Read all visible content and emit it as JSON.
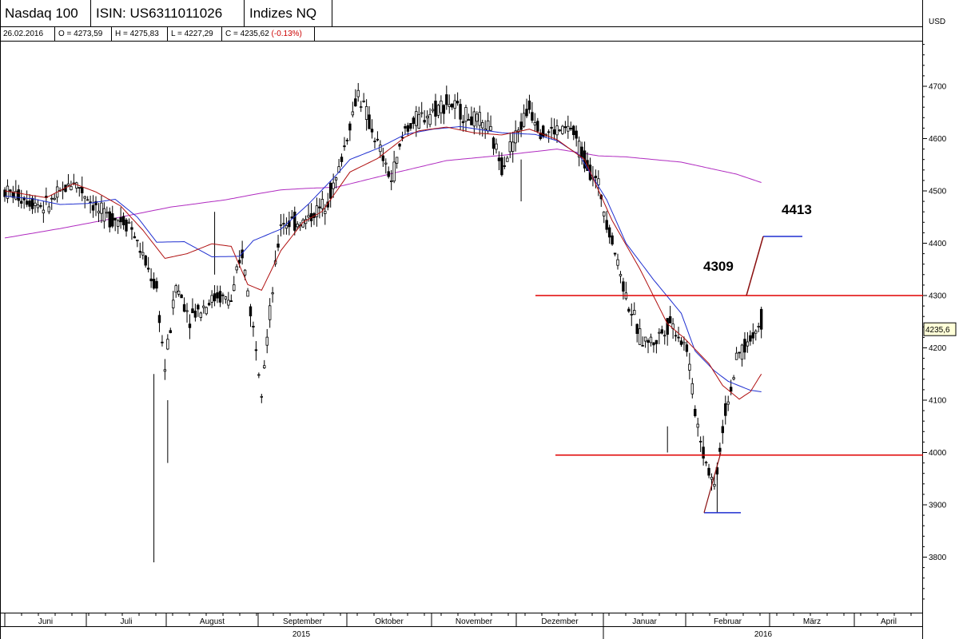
{
  "header": {
    "instrument": "Nasdaq 100",
    "isin": "ISIN: US6311011026",
    "index_group": "Indizes NQ",
    "currency": "USD"
  },
  "info_bar": {
    "date": "26.02.2016",
    "open": "O = 4273,59",
    "high": "H = 4275,83",
    "low": "L = 4227,29",
    "close": "C = 4235,62",
    "change": "(-0.13%)"
  },
  "colors": {
    "candle": "#000000",
    "ma_short": "#b01010",
    "ma_mid": "#1f2fd0",
    "ma_long": "#b02bc0",
    "level_line": "#e00000",
    "target_line": "#1f2fd0"
  },
  "chart_data": {
    "type": "candlestick",
    "y_axis": {
      "min": 3700,
      "max": 4800,
      "ticks": [
        3800,
        3900,
        4000,
        4100,
        4200,
        4300,
        4400,
        4500,
        4600,
        4700
      ],
      "unit": "USD"
    },
    "x_axis": {
      "months": [
        "Juni",
        "Juli",
        "August",
        "September",
        "Oktober",
        "November",
        "Dezember",
        "Januar",
        "Februar",
        "März",
        "April"
      ],
      "years": [
        "2015",
        "2016"
      ]
    },
    "current_price_label": "4235,6",
    "levels": [
      {
        "name": "resistance",
        "value": 4300
      },
      {
        "name": "support",
        "value": 3995
      }
    ],
    "annotations": [
      {
        "text": "4309",
        "value": 4309
      },
      {
        "text": "4413",
        "value": 4413
      }
    ],
    "targets": [
      {
        "name": "upper-target",
        "value": 4413
      },
      {
        "name": "lower-low",
        "value": 3885
      }
    ],
    "ma_long_anchors": [
      [
        0,
        4410
      ],
      [
        20,
        4428
      ],
      [
        40,
        4448
      ],
      [
        60,
        4469
      ],
      [
        80,
        4483
      ],
      [
        90,
        4493
      ],
      [
        100,
        4502
      ],
      [
        110,
        4505
      ],
      [
        120,
        4507
      ],
      [
        140,
        4533
      ],
      [
        160,
        4558
      ],
      [
        180,
        4568
      ],
      [
        200,
        4580
      ],
      [
        215,
        4567
      ],
      [
        225,
        4565
      ],
      [
        245,
        4555
      ],
      [
        265,
        4532
      ],
      [
        274,
        4516
      ]
    ],
    "ma_mid_anchors": [
      [
        0,
        4490
      ],
      [
        10,
        4485
      ],
      [
        20,
        4474
      ],
      [
        30,
        4476
      ],
      [
        40,
        4484
      ],
      [
        48,
        4450
      ],
      [
        55,
        4402
      ],
      [
        65,
        4403
      ],
      [
        75,
        4374
      ],
      [
        85,
        4375
      ],
      [
        90,
        4405
      ],
      [
        100,
        4427
      ],
      [
        110,
        4475
      ],
      [
        120,
        4530
      ],
      [
        125,
        4560
      ],
      [
        135,
        4581
      ],
      [
        145,
        4608
      ],
      [
        155,
        4618
      ],
      [
        165,
        4623
      ],
      [
        180,
        4611
      ],
      [
        192,
        4608
      ],
      [
        200,
        4596
      ],
      [
        208,
        4569
      ],
      [
        218,
        4483
      ],
      [
        225,
        4400
      ],
      [
        235,
        4330
      ],
      [
        245,
        4266
      ],
      [
        250,
        4194
      ],
      [
        257,
        4156
      ],
      [
        262,
        4136
      ],
      [
        270,
        4119
      ],
      [
        274,
        4116
      ]
    ],
    "ma_short_anchors": [
      [
        0,
        4500
      ],
      [
        15,
        4487
      ],
      [
        25,
        4514
      ],
      [
        33,
        4498
      ],
      [
        42,
        4471
      ],
      [
        50,
        4425
      ],
      [
        58,
        4371
      ],
      [
        66,
        4380
      ],
      [
        75,
        4399
      ],
      [
        82,
        4394
      ],
      [
        88,
        4321
      ],
      [
        93,
        4310
      ],
      [
        100,
        4386
      ],
      [
        108,
        4440
      ],
      [
        115,
        4461
      ],
      [
        125,
        4536
      ],
      [
        135,
        4562
      ],
      [
        145,
        4603
      ],
      [
        150,
        4615
      ],
      [
        160,
        4622
      ],
      [
        170,
        4611
      ],
      [
        180,
        4607
      ],
      [
        190,
        4618
      ],
      [
        200,
        4598
      ],
      [
        210,
        4560
      ],
      [
        220,
        4443
      ],
      [
        230,
        4351
      ],
      [
        240,
        4246
      ],
      [
        246,
        4219
      ],
      [
        255,
        4170
      ],
      [
        260,
        4128
      ],
      [
        266,
        4102
      ],
      [
        270,
        4116
      ],
      [
        274,
        4150
      ]
    ],
    "candle_anchors": [
      [
        0,
        4500
      ],
      [
        15,
        4470
      ],
      [
        25,
        4520
      ],
      [
        35,
        4455
      ],
      [
        45,
        4440
      ],
      [
        55,
        4310
      ],
      [
        58,
        4160
      ],
      [
        62,
        4320
      ],
      [
        67,
        4260
      ],
      [
        77,
        4300
      ],
      [
        82,
        4290
      ],
      [
        86,
        4380
      ],
      [
        93,
        4130
      ],
      [
        100,
        4440
      ],
      [
        108,
        4440
      ],
      [
        115,
        4470
      ],
      [
        120,
        4520
      ],
      [
        128,
        4690
      ],
      [
        132,
        4630
      ],
      [
        140,
        4520
      ],
      [
        145,
        4620
      ],
      [
        160,
        4670
      ],
      [
        168,
        4640
      ],
      [
        175,
        4620
      ],
      [
        180,
        4550
      ],
      [
        190,
        4660
      ],
      [
        195,
        4610
      ],
      [
        205,
        4620
      ],
      [
        210,
        4560
      ],
      [
        215,
        4510
      ],
      [
        225,
        4300
      ],
      [
        230,
        4220
      ],
      [
        235,
        4210
      ],
      [
        241,
        4250
      ],
      [
        247,
        4200
      ],
      [
        250,
        4080
      ],
      [
        253,
        4000
      ],
      [
        257,
        3935
      ],
      [
        261,
        4080
      ],
      [
        266,
        4190
      ],
      [
        270,
        4215
      ],
      [
        274,
        4250
      ]
    ]
  }
}
